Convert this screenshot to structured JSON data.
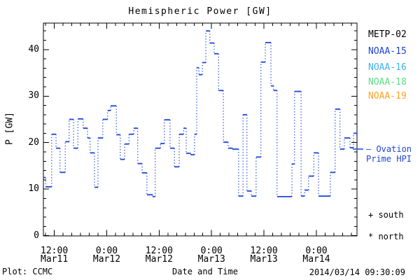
{
  "title": "Hemispheric Power [GW]",
  "colors": {
    "curve": "#1e46d8",
    "axis": "#000000",
    "background": "#ffffff"
  },
  "y_axis": {
    "label": "P [GW]",
    "ticks": [
      0,
      10,
      20,
      30,
      40
    ],
    "minor_step": 2,
    "max": 45.7
  },
  "x_axis": {
    "label": "Date and Time",
    "minor_step_hours": 2,
    "total_hours": 71.8,
    "ticks": [
      {
        "hour": 2.5,
        "time": "12:00",
        "date": "Mar11"
      },
      {
        "hour": 14.5,
        "time": "0:00",
        "date": "Mar12"
      },
      {
        "hour": 26.5,
        "time": "12:00",
        "date": "Mar12"
      },
      {
        "hour": 38.5,
        "time": "0:00",
        "date": "Mar13"
      },
      {
        "hour": 50.5,
        "time": "12:00",
        "date": "Mar13"
      },
      {
        "hour": 62.5,
        "time": "0:00",
        "date": "Mar14"
      }
    ]
  },
  "legend": {
    "items": [
      {
        "label": "METP-02",
        "color": "#000000"
      },
      {
        "label": "NOAA-15",
        "color": "#1e46d8"
      },
      {
        "label": "NOAA-16",
        "color": "#3ab4f0"
      },
      {
        "label": "NOAA-18",
        "color": "#5cdd86"
      },
      {
        "label": "NOAA-19",
        "color": "#ffa224"
      }
    ]
  },
  "annotations": {
    "ovation_line1": "— Ovation",
    "ovation_line2": "Prime HPI",
    "south_marker": "+ south",
    "north_marker": "* north"
  },
  "footer": {
    "left": "Plot: CCMC",
    "right": "2014/03/14 09:30:09"
  },
  "chart_data": {
    "type": "line",
    "style": "step-histogram",
    "title": "Hemispheric Power [GW]",
    "xlabel": "Date and Time",
    "ylabel": "P [GW]",
    "x_unit": "hours after 2014-03-11 ~09:30 UT",
    "x_range_hours": [
      0,
      71.8
    ],
    "ylim": [
      0,
      45.7
    ],
    "y_ticks": [
      0,
      10,
      20,
      30,
      40
    ],
    "grid": false,
    "legend_position": "right-outside",
    "series_name": "Ovation Prime HPI (hemispheric power, GW)",
    "steps": [
      [
        0.0,
        12.5
      ],
      [
        0.5,
        10.5
      ],
      [
        1.9,
        21.8
      ],
      [
        2.9,
        18.8
      ],
      [
        3.8,
        13.6
      ],
      [
        5.0,
        20.2
      ],
      [
        5.9,
        25.0
      ],
      [
        6.9,
        18.8
      ],
      [
        7.9,
        25.1
      ],
      [
        9.1,
        23.1
      ],
      [
        10.1,
        21.0
      ],
      [
        10.7,
        17.8
      ],
      [
        11.7,
        10.4
      ],
      [
        12.5,
        21.0
      ],
      [
        13.6,
        25.0
      ],
      [
        14.7,
        26.9
      ],
      [
        15.4,
        27.9
      ],
      [
        16.7,
        21.7
      ],
      [
        17.6,
        16.4
      ],
      [
        18.6,
        19.7
      ],
      [
        19.6,
        21.8
      ],
      [
        20.7,
        23.1
      ],
      [
        21.6,
        15.5
      ],
      [
        22.6,
        13.5
      ],
      [
        23.7,
        8.8
      ],
      [
        25.0,
        8.4
      ],
      [
        25.6,
        18.8
      ],
      [
        26.8,
        19.8
      ],
      [
        27.7,
        24.9
      ],
      [
        29.0,
        18.8
      ],
      [
        30.0,
        14.8
      ],
      [
        31.1,
        21.8
      ],
      [
        32.1,
        23.1
      ],
      [
        32.7,
        17.7
      ],
      [
        33.7,
        17.4
      ],
      [
        34.6,
        21.8
      ],
      [
        35.1,
        36.1
      ],
      [
        35.6,
        34.6
      ],
      [
        36.4,
        37.2
      ],
      [
        37.2,
        44.0
      ],
      [
        38.1,
        41.4
      ],
      [
        39.1,
        39.1
      ],
      [
        40.1,
        31.2
      ],
      [
        41.2,
        20.1
      ],
      [
        42.3,
        18.8
      ],
      [
        43.3,
        18.6
      ],
      [
        44.7,
        8.5
      ],
      [
        45.7,
        26.0
      ],
      [
        46.6,
        9.6
      ],
      [
        47.6,
        8.5
      ],
      [
        48.7,
        16.9
      ],
      [
        49.8,
        37.3
      ],
      [
        50.8,
        41.5
      ],
      [
        52.1,
        32.2
      ],
      [
        52.7,
        31.2
      ],
      [
        53.5,
        8.4
      ],
      [
        56.9,
        15.4
      ],
      [
        57.5,
        31.0
      ],
      [
        59.0,
        8.5
      ],
      [
        59.8,
        9.8
      ],
      [
        60.7,
        12.8
      ],
      [
        61.9,
        17.8
      ],
      [
        63.0,
        8.5
      ],
      [
        65.7,
        13.6
      ],
      [
        66.8,
        27.2
      ],
      [
        67.9,
        18.6
      ],
      [
        68.9,
        21.0
      ],
      [
        70.2,
        18.9
      ],
      [
        71.0,
        22.0
      ]
    ]
  }
}
